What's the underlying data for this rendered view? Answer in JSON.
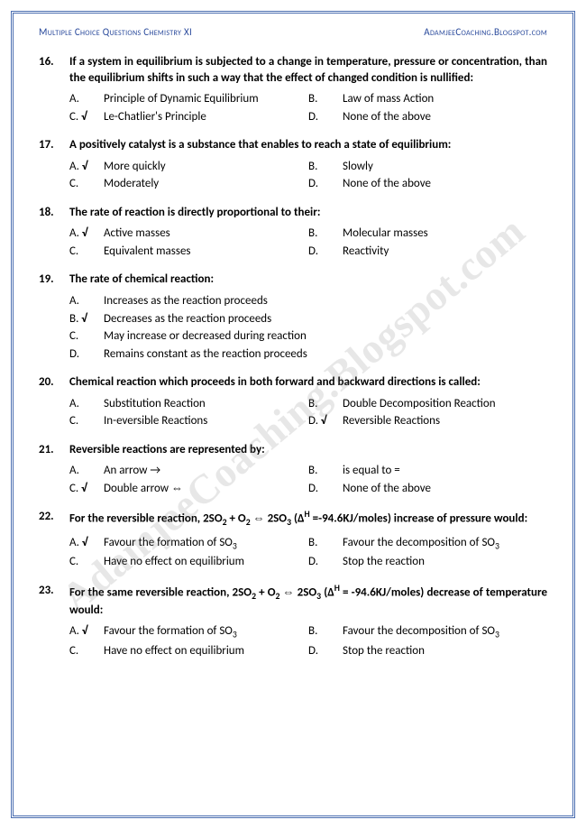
{
  "header": {
    "left": "Multiple Choice Questions Chemistry XI",
    "right": "AdamjeeCoaching.Blogspot.com"
  },
  "watermark": "AdamjeeCoaching.Blogspot.com",
  "questions": [
    {
      "num": "16.",
      "stem": "If a system in equilibrium is subjected to a change in temperature, pressure or concentration, than the equilibrium shifts in such a way that the effect of changed condition is nullified:",
      "layout": "2col",
      "opts": [
        {
          "l": "A.",
          "t": "Principle of Dynamic Equilibrium",
          "c": false
        },
        {
          "l": "B.",
          "t": "Law of mass Action",
          "c": false
        },
        {
          "l": "C.",
          "t": "Le-Chatlier's Principle",
          "c": true
        },
        {
          "l": "D.",
          "t": "None of the above",
          "c": false
        }
      ]
    },
    {
      "num": "17.",
      "stem": "A positively catalyst is a substance that enables to reach a state of equilibrium:",
      "layout": "2col",
      "opts": [
        {
          "l": "A.",
          "t": "More quickly",
          "c": true
        },
        {
          "l": "B.",
          "t": "Slowly",
          "c": false
        },
        {
          "l": "C.",
          "t": "Moderately",
          "c": false
        },
        {
          "l": "D.",
          "t": "None of the above",
          "c": false
        }
      ]
    },
    {
      "num": "18.",
      "stem": "The rate of reaction is directly proportional to their:",
      "layout": "2col",
      "opts": [
        {
          "l": "A.",
          "t": "Active masses",
          "c": true
        },
        {
          "l": "B.",
          "t": "Molecular masses",
          "c": false
        },
        {
          "l": "C.",
          "t": "Equivalent masses",
          "c": false
        },
        {
          "l": "D.",
          "t": "Reactivity",
          "c": false
        }
      ]
    },
    {
      "num": "19.",
      "stem": "The rate of chemical reaction:",
      "layout": "1col",
      "opts": [
        {
          "l": "A.",
          "t": "Increases as the reaction proceeds",
          "c": false
        },
        {
          "l": "B.",
          "t": "Decreases as the reaction proceeds",
          "c": true
        },
        {
          "l": "C.",
          "t": "May increase or decreased during reaction",
          "c": false
        },
        {
          "l": "D.",
          "t": "Remains constant as the reaction proceeds",
          "c": false
        }
      ]
    },
    {
      "num": "20.",
      "stem": "Chemical reaction which proceeds in both forward and backward directions is called:",
      "layout": "2col",
      "opts": [
        {
          "l": "A.",
          "t": "Substitution Reaction",
          "c": false
        },
        {
          "l": "B.",
          "t": "Double Decomposition Reaction",
          "c": false
        },
        {
          "l": "C.",
          "t": "In-eversible Reactions",
          "c": false
        },
        {
          "l": "D.",
          "t": "Reversible Reactions",
          "c": true
        }
      ]
    },
    {
      "num": "21.",
      "stem": "Reversible reactions are represented by:",
      "layout": "2col",
      "opts": [
        {
          "l": "A.",
          "t": "An arrow →",
          "c": false
        },
        {
          "l": "B.",
          "t": "is equal to =",
          "c": false
        },
        {
          "l": "C.",
          "t": "Double arrow ⇔",
          "c": true
        },
        {
          "l": "D.",
          "t": "None of the above",
          "c": false
        }
      ]
    },
    {
      "num": "22.",
      "stem_html": "For  the  reversible  reaction,  2SO<sub>2</sub> + O<sub>2</sub> ⇔ 2SO<sub>3</sub>  (Δ<sup>H</sup> =-94.6KJ/moles)  increase  of pressure would:",
      "layout": "2col",
      "opts": [
        {
          "l": "A.",
          "t_html": "Favour the formation of SO<sub>3</sub>",
          "c": true
        },
        {
          "l": "B.",
          "t_html": "Favour the decomposition of SO<sub>3</sub>",
          "c": false
        },
        {
          "l": "C.",
          "t": "Have no effect on equilibrium",
          "c": false
        },
        {
          "l": "D.",
          "t": "Stop the reaction",
          "c": false
        }
      ]
    },
    {
      "num": "23.",
      "stem_html": "For the same reversible reaction, 2SO<sub>2</sub> + O<sub>2</sub> ⇔ 2SO<sub>3</sub> (Δ<sup>H</sup> = -94.6KJ/moles) decrease of temperature would:",
      "layout": "2col",
      "opts": [
        {
          "l": "A.",
          "t_html": "Favour the formation of SO<sub>3</sub>",
          "c": true
        },
        {
          "l": "B.",
          "t_html": "Favour the decomposition of SO<sub>3</sub>",
          "c": false
        },
        {
          "l": "C.",
          "t": "Have no effect on equilibrium",
          "c": false
        },
        {
          "l": "D.",
          "t": "Stop the reaction",
          "c": false
        }
      ]
    }
  ]
}
